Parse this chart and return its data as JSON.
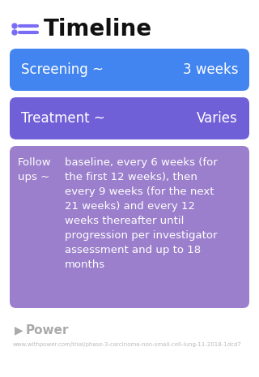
{
  "title": "Timeline",
  "bg_color": "#ffffff",
  "icon_color": "#7B6CF6",
  "title_color": "#111111",
  "title_fontsize": 20,
  "rows": [
    {
      "label_left": "Screening ~",
      "label_right": "3 weeks",
      "bg_color": "#4285f0",
      "text_color": "#ffffff",
      "fontsize": 12,
      "type": "simple"
    },
    {
      "label_left": "Treatment ~",
      "label_right": "Varies",
      "bg_color": "#7060d8",
      "text_color": "#ffffff",
      "fontsize": 12,
      "type": "simple"
    },
    {
      "col1": "Follow\nups ~",
      "col2": "baseline, every 6 weeks (for\nthe first 12 weeks), then\nevery 9 weeks (for the next\n21 weeks) and every 12\nweeks thereafter until\nprogression per investigator\nassessment and up to 18\nmonths",
      "bg_color": "#9B7FCC",
      "text_color": "#ffffff",
      "fontsize": 9.5,
      "type": "followup"
    }
  ],
  "footer_text": "Power",
  "footer_url": "www.withpower.com/trial/phase-3-carcinoma-non-small-cell-lung-11-2018-1dcd7",
  "footer_color": "#aaaaaa"
}
